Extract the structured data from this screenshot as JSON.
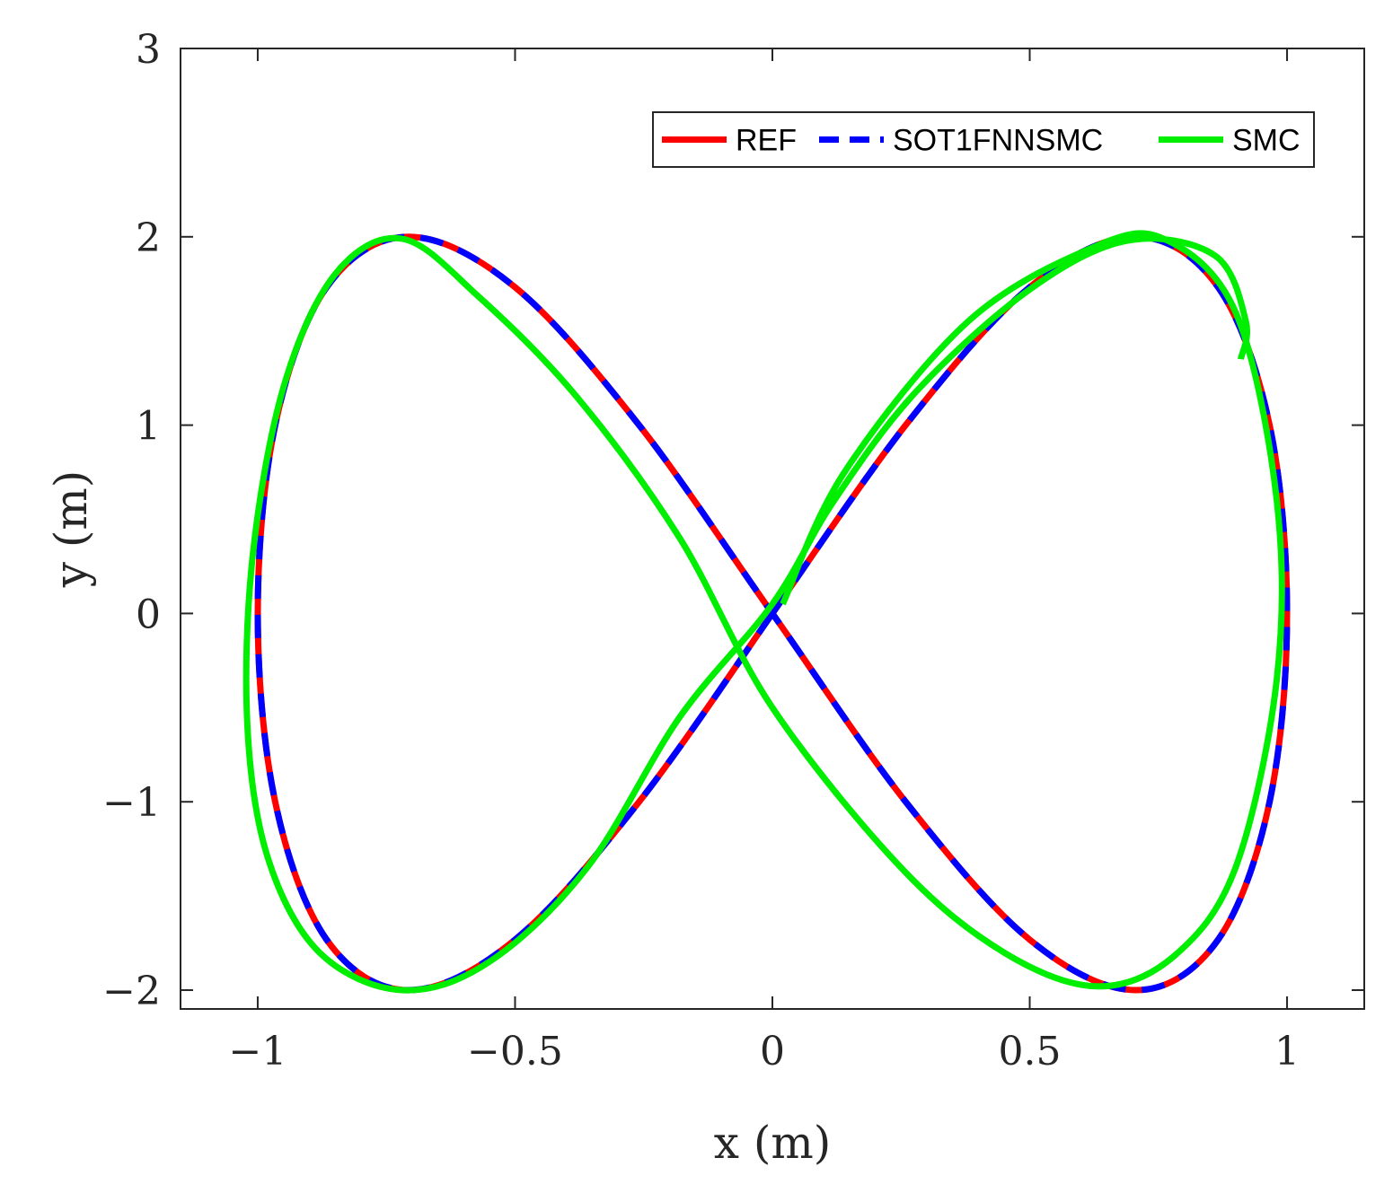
{
  "chart_data": {
    "type": "line",
    "title": "",
    "xlabel": "x (m)",
    "ylabel": "y (m)",
    "xlim": [
      -1.15,
      1.15
    ],
    "ylim": [
      -2.1,
      3
    ],
    "xticks": [
      -1,
      -0.5,
      0,
      0.5,
      1
    ],
    "xtick_labels": [
      "−1",
      "−0.5",
      "0",
      "0.5",
      "1"
    ],
    "yticks": [
      -2,
      -1,
      0,
      1,
      2,
      3
    ],
    "ytick_labels": [
      "−2",
      "−1",
      "0",
      "1",
      "2",
      "3"
    ],
    "grid": false,
    "legend_position": "top-right",
    "legend_orientation": "horizontal",
    "series": [
      {
        "name": "REF",
        "color": "#ff0000",
        "style": "solid",
        "x": [
          0.0,
          0.259,
          0.5,
          0.707,
          0.866,
          0.966,
          1.0,
          0.966,
          0.866,
          0.707,
          0.5,
          0.259,
          0.0,
          -0.259,
          -0.5,
          -0.707,
          -0.866,
          -0.966,
          -1.0,
          -0.966,
          -0.866,
          -0.707,
          -0.5,
          -0.259,
          0.0
        ],
        "y": [
          0.0,
          1.0,
          1.732,
          2.0,
          1.732,
          1.0,
          0.0,
          -1.0,
          -1.732,
          -2.0,
          -1.732,
          -1.0,
          0.0,
          1.0,
          1.732,
          2.0,
          1.732,
          1.0,
          0.0,
          -1.0,
          -1.732,
          -2.0,
          -1.732,
          -1.0,
          0.0
        ]
      },
      {
        "name": "SOT1FNNSMC",
        "color": "#0000ff",
        "style": "dashed",
        "x": [
          0.0,
          0.259,
          0.5,
          0.707,
          0.866,
          0.966,
          1.0,
          0.966,
          0.866,
          0.707,
          0.5,
          0.259,
          0.0,
          -0.259,
          -0.5,
          -0.707,
          -0.866,
          -0.966,
          -1.0,
          -0.966,
          -0.866,
          -0.707,
          -0.5,
          -0.259,
          0.0
        ],
        "y": [
          0.0,
          1.0,
          1.732,
          2.0,
          1.732,
          1.0,
          0.0,
          -1.0,
          -1.732,
          -2.0,
          -1.732,
          -1.0,
          0.0,
          1.0,
          1.732,
          2.0,
          1.732,
          1.0,
          0.0,
          -1.0,
          -1.732,
          -2.0,
          -1.732,
          -1.0,
          0.0
        ]
      },
      {
        "name": "SMC",
        "color": "#00ee00",
        "style": "solid",
        "x": [
          0.02,
          0.14,
          0.38,
          0.62,
          0.76,
          0.9,
          0.98,
          0.98,
          0.9,
          0.78,
          0.63,
          0.45,
          0.25,
          0.0,
          -0.18,
          -0.38,
          -0.57,
          -0.72,
          -0.85,
          -0.95,
          -1.01,
          -1.02,
          -0.98,
          -0.88,
          -0.72,
          -0.55,
          -0.36,
          -0.18,
          0.0,
          0.12,
          0.28,
          0.5,
          0.69,
          0.86,
          0.92,
          0.91
        ],
        "y": [
          0.05,
          0.75,
          1.55,
          1.94,
          1.99,
          1.6,
          0.6,
          -0.35,
          -1.35,
          -1.82,
          -1.98,
          -1.8,
          -1.35,
          -0.5,
          0.4,
          1.15,
          1.68,
          1.99,
          1.8,
          1.2,
          0.3,
          -0.6,
          -1.3,
          -1.8,
          -2.0,
          -1.85,
          -1.35,
          -0.55,
          0.05,
          0.6,
          1.18,
          1.72,
          1.98,
          1.9,
          1.55,
          1.35
        ]
      }
    ]
  }
}
